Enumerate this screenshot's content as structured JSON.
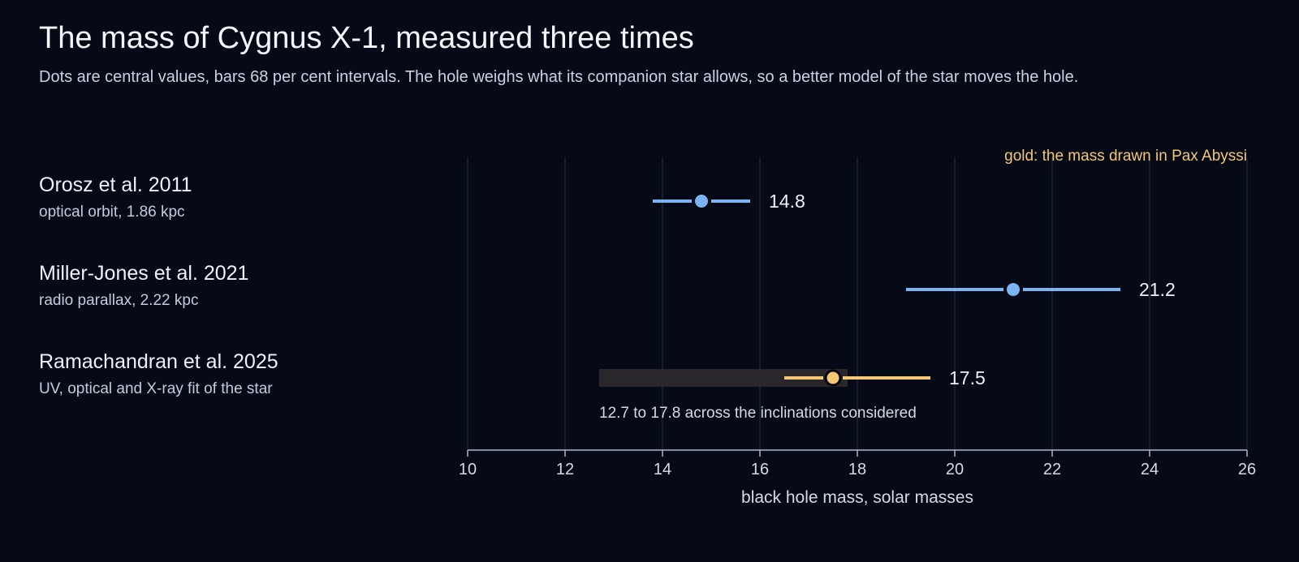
{
  "header": {
    "title": "The mass of Cygnus X-1, measured three times",
    "subtitle": "Dots are central values, bars 68 per cent intervals. The hole weighs what its companion star allows, so a better model of the star moves the hole."
  },
  "rows": [
    {
      "name": "Orosz et al. 2011",
      "method": "optical orbit, 1.86 kpc"
    },
    {
      "name": "Miller-Jones et al. 2021",
      "method": "radio parallax, 2.22 kpc"
    },
    {
      "name": "Ramachandran et al. 2025",
      "method": "UV, optical and X-ray fit of the star"
    }
  ],
  "chart_data": {
    "type": "dot-interval",
    "xlabel": "black hole mass, solar masses",
    "xlim": [
      10,
      26
    ],
    "xticks": [
      "10",
      "12",
      "14",
      "16",
      "18",
      "20",
      "22",
      "24",
      "26"
    ],
    "grid": true,
    "annotation": "gold: the mass drawn in Pax Abyssi",
    "series": [
      {
        "name": "Orosz et al. 2011",
        "value": 14.8,
        "low": 13.8,
        "high": 15.8,
        "label": "14.8",
        "highlight": false
      },
      {
        "name": "Miller-Jones et al. 2021",
        "value": 21.2,
        "low": 19.0,
        "high": 23.4,
        "label": "21.2",
        "highlight": false
      },
      {
        "name": "Ramachandran et al. 2025",
        "value": 17.5,
        "low": 16.5,
        "high": 19.5,
        "label": "17.5",
        "highlight": true,
        "range": {
          "low": 12.7,
          "high": 17.8,
          "label": "12.7 to 17.8 across the inclinations considered"
        }
      }
    ],
    "colors": {
      "normal": "#7cb3f2",
      "highlight": "#f6c777",
      "range_fill": "#2e2a2c",
      "grid": "#273047",
      "axis": "#aab3c6",
      "tick_text": "#d4dae6",
      "annotation": "#f3c776"
    }
  }
}
